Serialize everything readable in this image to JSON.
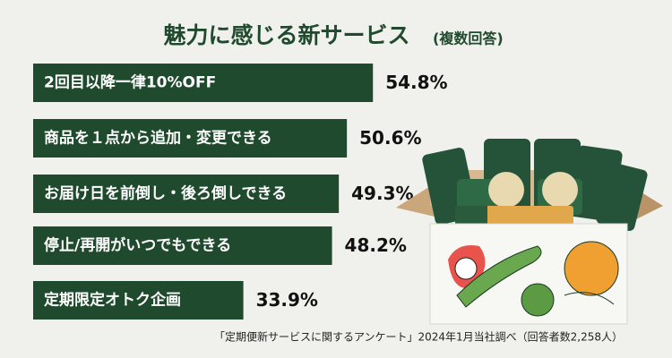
{
  "chart_data": {
    "type": "bar",
    "orientation": "horizontal",
    "title": "魅力に感じる新サービス",
    "subtitle": "(複数回答)",
    "categories": [
      "2回目以降一律10%OFF",
      "商品を１点から追加・変更できる",
      "お届け日を前倒し・後ろ倒しできる",
      "停止/再開がいつでもできる",
      "定期限定オトク企画"
    ],
    "values": [
      54.8,
      50.6,
      49.3,
      48.2,
      33.9
    ],
    "value_labels": [
      "54.8%",
      "50.6%",
      "49.3%",
      "48.2%",
      "33.9%"
    ],
    "color": "#1f4a2d",
    "source": "「定期便新サービスに関するアンケート」2024年1月当社調べ（回答者数2,258人）"
  }
}
